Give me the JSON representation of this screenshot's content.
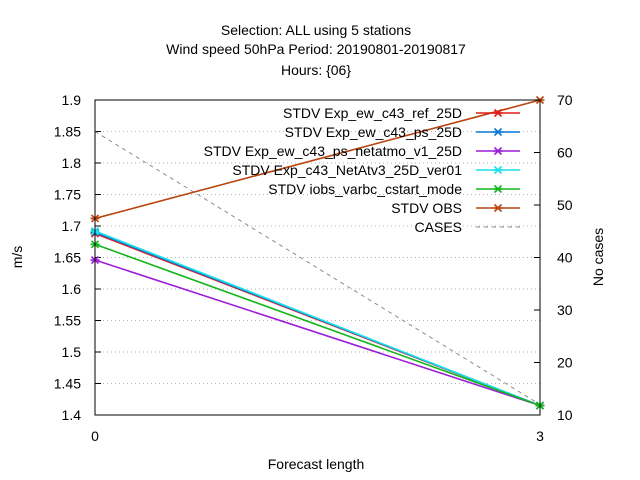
{
  "chart_data": {
    "type": "line",
    "title_lines": [
      "Selection: ALL using     5 stations",
      "Wind speed 50hPa   Period: 20190801-20190817",
      "Hours: {06}"
    ],
    "xlabel": "Forecast length",
    "ylabel": "m/s",
    "y2label": "No cases",
    "x": [
      0,
      3
    ],
    "x_ticks": [
      "0",
      "3"
    ],
    "ylim": [
      1.4,
      1.9
    ],
    "y_ticks": [
      "1.4",
      "1.45",
      "1.5",
      "1.55",
      "1.6",
      "1.65",
      "1.7",
      "1.75",
      "1.8",
      "1.85",
      "1.9"
    ],
    "y2lim": [
      10,
      70
    ],
    "y2_ticks": [
      "10",
      "20",
      "30",
      "40",
      "50",
      "60",
      "70"
    ],
    "grid": "horizontal dotted",
    "legend_position": "top-right",
    "series": [
      {
        "name": "STDV Exp_ew_c43_ref_25D",
        "color": "#e41a1c",
        "values": [
          1.688,
          1.415
        ],
        "axis": "left",
        "marker": "x"
      },
      {
        "name": "STDV Exp_ew_c43_ps_25D",
        "color": "#0b78d8",
        "values": [
          1.69,
          1.415
        ],
        "axis": "left",
        "marker": "x"
      },
      {
        "name": "STDV Exp_ew_c43_ps_netatmo_v1_25D",
        "color": "#9b1ed8",
        "values": [
          1.646,
          1.415
        ],
        "axis": "left",
        "marker": "x"
      },
      {
        "name": "STDV Exp_c43_NetAtv3_25D_ver01",
        "color": "#1ce0e8",
        "values": [
          1.692,
          1.415
        ],
        "axis": "left",
        "marker": "x"
      },
      {
        "name": "STDV iobs_varbc_cstart_mode",
        "color": "#16b51c",
        "values": [
          1.671,
          1.415
        ],
        "axis": "left",
        "marker": "x"
      },
      {
        "name": "STDV OBS",
        "color": "#b8440e",
        "values": [
          1.712,
          1.9
        ],
        "axis": "left",
        "marker": "x"
      },
      {
        "name": "CASES",
        "color": "#8c8c8c",
        "values": [
          64,
          12
        ],
        "axis": "right",
        "marker": "none",
        "dash": true
      }
    ]
  }
}
